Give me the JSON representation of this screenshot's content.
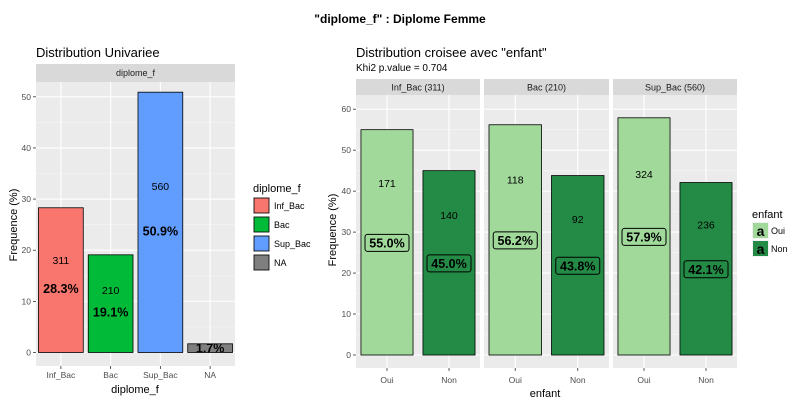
{
  "page": {
    "title": "\"diplome_f\" : Diplome Femme"
  },
  "chart_data": [
    {
      "type": "bar",
      "title": "Distribution Univariee",
      "facet_label": "diplome_f",
      "xlabel": "diplome_f",
      "ylabel": "Frequence (%)",
      "ylim": [
        0,
        52.5
      ],
      "yticks": [
        "0",
        "10",
        "20",
        "30",
        "40",
        "50"
      ],
      "categories": [
        "Inf_Bac",
        "Bac",
        "Sup_Bac",
        "NA"
      ],
      "values": [
        28.3,
        19.1,
        50.9,
        1.7
      ],
      "counts": [
        "311",
        "210",
        "560",
        ""
      ],
      "pct_labels": [
        "28.3%",
        "19.1%",
        "50.9%",
        "1.7%"
      ],
      "colors": [
        "#F8766D",
        "#00BA38",
        "#619CFF",
        "#7F7F7F"
      ],
      "grid": true,
      "legend": {
        "title": "diplome_f",
        "position": "right",
        "entries": [
          "Inf_Bac",
          "Bac",
          "Sup_Bac",
          "NA"
        ]
      }
    },
    {
      "type": "bar",
      "title": "Distribution croisee avec \"enfant\"",
      "subtitle": "Khi2 p.value = 0.704",
      "xlabel": "enfant",
      "ylabel": "Frequence (%)",
      "ylim": [
        0,
        62
      ],
      "yticks": [
        "0",
        "10",
        "20",
        "30",
        "40",
        "50",
        "60"
      ],
      "categories": [
        "Oui",
        "Non"
      ],
      "colors": [
        "#A1D99B",
        "#238B45"
      ],
      "grid": true,
      "facets": [
        {
          "label": "Inf_Bac (311)",
          "values": [
            55.0,
            45.0
          ],
          "counts": [
            "171",
            "140"
          ],
          "pct_labels": [
            "55.0%",
            "45.0%"
          ]
        },
        {
          "label": "Bac (210)",
          "values": [
            56.2,
            43.8
          ],
          "counts": [
            "118",
            "92"
          ],
          "pct_labels": [
            "56.2%",
            "43.8%"
          ]
        },
        {
          "label": "Sup_Bac (560)",
          "values": [
            57.9,
            42.1
          ],
          "counts": [
            "324",
            "236"
          ],
          "pct_labels": [
            "57.9%",
            "42.1%"
          ]
        }
      ],
      "legend": {
        "title": "enfant",
        "position": "right",
        "entries": [
          "Oui",
          "Non"
        ],
        "key_glyph": "a"
      }
    }
  ]
}
